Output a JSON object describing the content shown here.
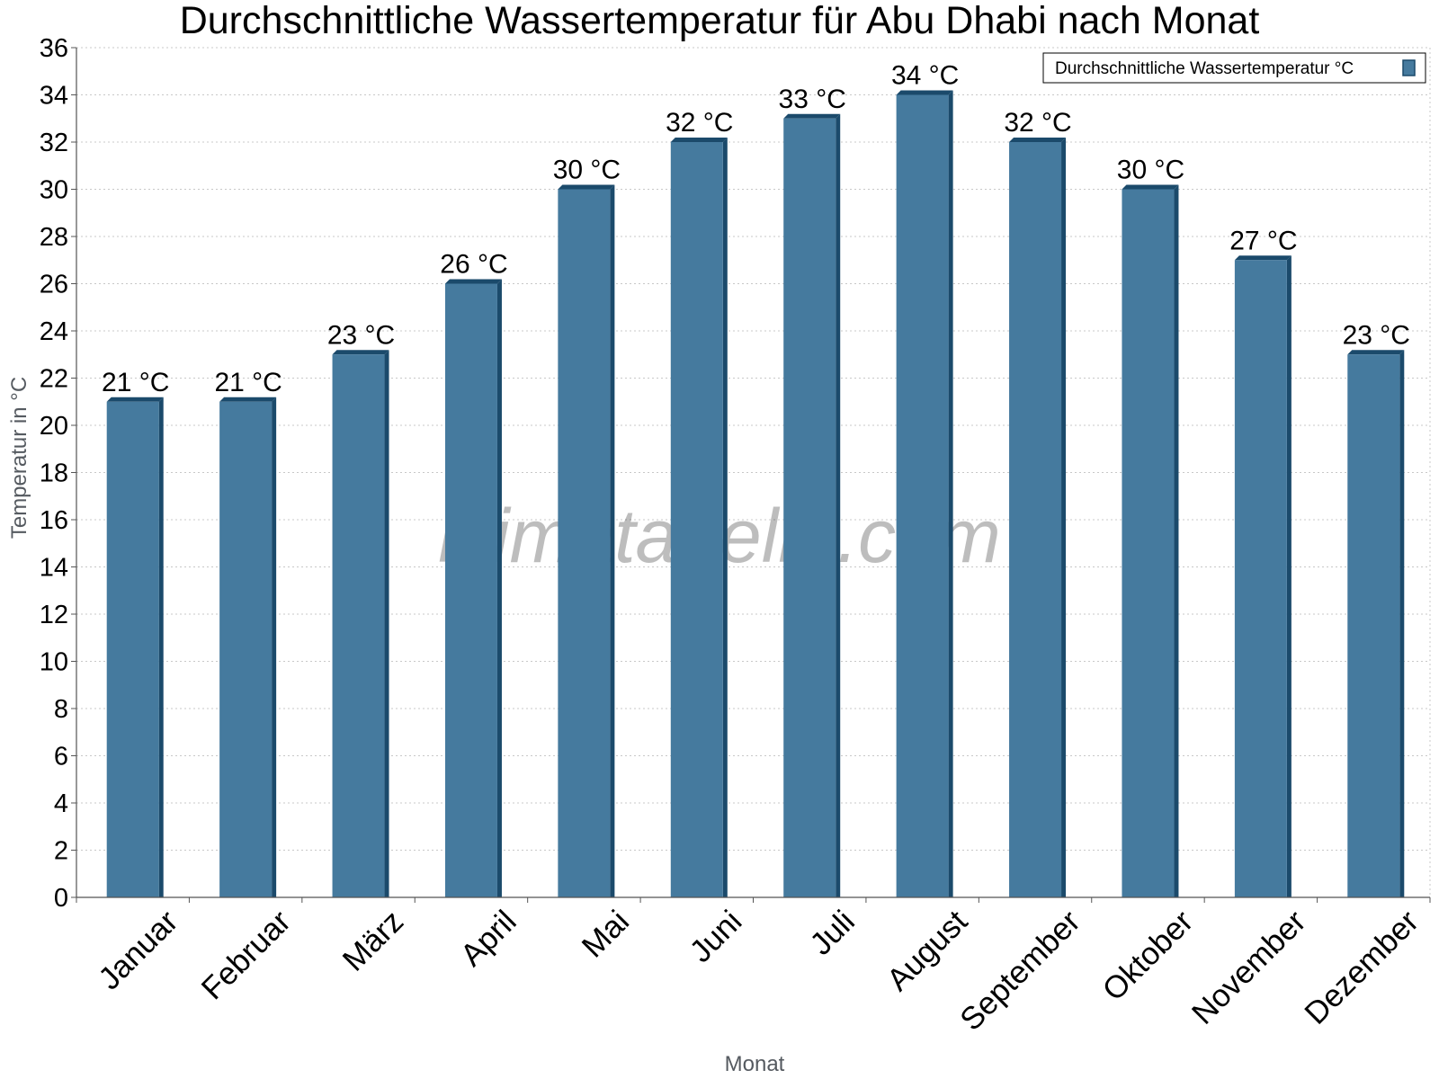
{
  "chart_data": {
    "type": "bar",
    "title": "Durchschnittliche Wassertemperatur für Abu Dhabi nach Monat",
    "xlabel": "Monat",
    "ylabel": "Temperatur in °C",
    "ylim": [
      0,
      36
    ],
    "ytick_step": 2,
    "grid": true,
    "legend_position": "top-right",
    "categories": [
      "Januar",
      "Februar",
      "März",
      "April",
      "Mai",
      "Juni",
      "Juli",
      "August",
      "September",
      "Oktober",
      "November",
      "Dezember"
    ],
    "series": [
      {
        "name": "Durchschnittliche Wassertemperatur °C",
        "color": "#457a9e",
        "values": [
          21,
          21,
          23,
          26,
          30,
          32,
          33,
          34,
          32,
          30,
          27,
          23
        ],
        "value_labels": [
          "21 °C",
          "21 °C",
          "23 °C",
          "26 °C",
          "30 °C",
          "32 °C",
          "33 °C",
          "34 °C",
          "32 °C",
          "30 °C",
          "27 °C",
          "23 °C"
        ]
      }
    ]
  },
  "watermark": "klimatabelle.com"
}
